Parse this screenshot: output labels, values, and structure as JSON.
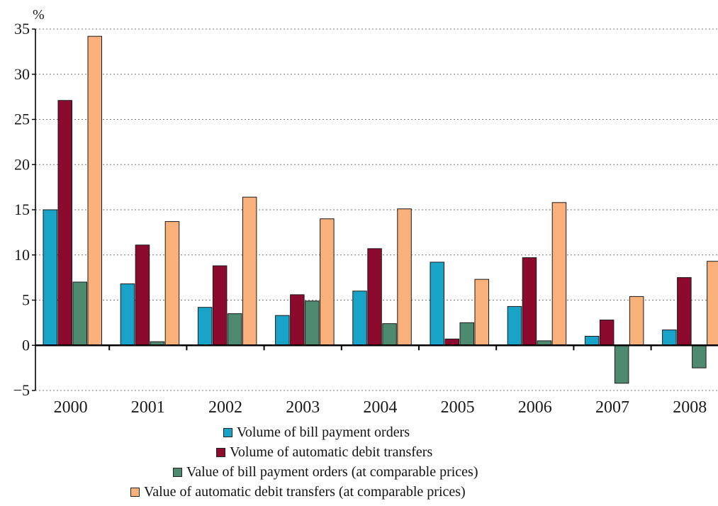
{
  "chart_data": {
    "type": "bar",
    "unit_label": "%",
    "categories": [
      "2000",
      "2001",
      "2002",
      "2003",
      "2004",
      "2005",
      "2006",
      "2007",
      "2008"
    ],
    "ylim": [
      -5,
      35
    ],
    "yticks": [
      -5,
      0,
      5,
      10,
      15,
      20,
      25,
      30,
      35
    ],
    "ytick_labels": [
      "−5",
      "0",
      "5",
      "10",
      "15",
      "20",
      "25",
      "30",
      "35"
    ],
    "grid": true,
    "legend_position": "bottom",
    "series": [
      {
        "name": "Volume of bill payment orders",
        "color": "#1aa3c8",
        "values": [
          15.0,
          6.8,
          4.2,
          3.3,
          6.0,
          9.2,
          4.3,
          1.0,
          1.7
        ]
      },
      {
        "name": "Volume of automatic debit transfers",
        "color": "#8b0a2e",
        "values": [
          27.1,
          11.1,
          8.8,
          5.6,
          10.7,
          0.7,
          9.7,
          2.8,
          7.5
        ]
      },
      {
        "name": "Value of bill payment orders (at comparable prices)",
        "color": "#4e8a70",
        "values": [
          7.0,
          0.4,
          3.5,
          4.9,
          2.4,
          2.5,
          0.5,
          -4.2,
          -2.5
        ]
      },
      {
        "name": "Value of automatic debit transfers (at comparable prices)",
        "color": "#f9b07a",
        "values": [
          34.2,
          13.7,
          16.4,
          14.0,
          15.1,
          7.3,
          15.8,
          5.4,
          9.3
        ]
      }
    ]
  }
}
